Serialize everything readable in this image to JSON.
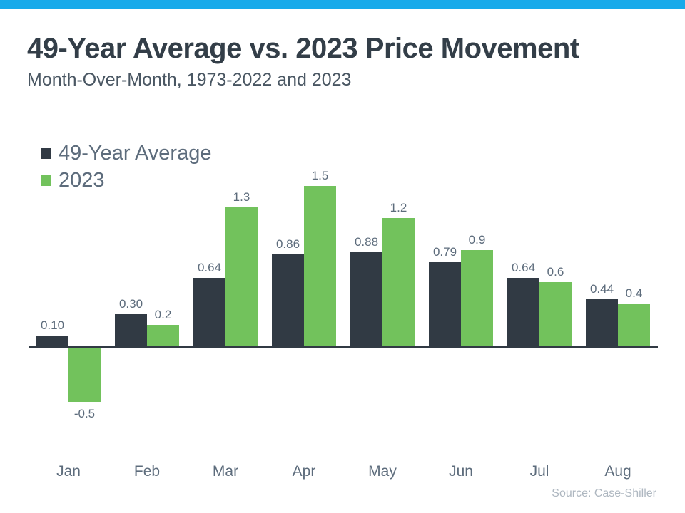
{
  "theme": {
    "accent_bar_color": "#18AAEA",
    "title_color": "#333E48",
    "subtitle_color": "#4A5763",
    "label_color": "#5D6C7C",
    "source_color": "#AEB7C0",
    "axis_color": "#313A44"
  },
  "chart_data": {
    "type": "bar",
    "title": "49-Year Average vs. 2023 Price Movement",
    "subtitle": "Month-Over-Month, 1973-2022 and 2023",
    "source": "Source: Case-Shiller",
    "xlabel": "",
    "ylabel": "",
    "categories": [
      "Jan",
      "Feb",
      "Mar",
      "Apr",
      "May",
      "Jun",
      "Jul",
      "Aug"
    ],
    "series": [
      {
        "name": "49-Year Average",
        "color": "#313A44",
        "values": [
          0.1,
          0.3,
          0.64,
          0.86,
          0.88,
          0.79,
          0.64,
          0.44
        ],
        "labels": [
          "0.10",
          "0.30",
          "0.64",
          "0.86",
          "0.88",
          "0.79",
          "0.64",
          "0.44"
        ]
      },
      {
        "name": "2023",
        "color": "#72C25C",
        "values": [
          -0.5,
          0.2,
          1.3,
          1.5,
          1.2,
          0.9,
          0.6,
          0.4
        ],
        "labels": [
          "-0.5",
          "0.2",
          "1.3",
          "1.5",
          "1.2",
          "0.9",
          "0.6",
          "0.4"
        ]
      }
    ],
    "ylim": [
      -0.6,
      1.6
    ],
    "grid": false,
    "legend_position": "top-left",
    "value_labels_shown": true
  }
}
